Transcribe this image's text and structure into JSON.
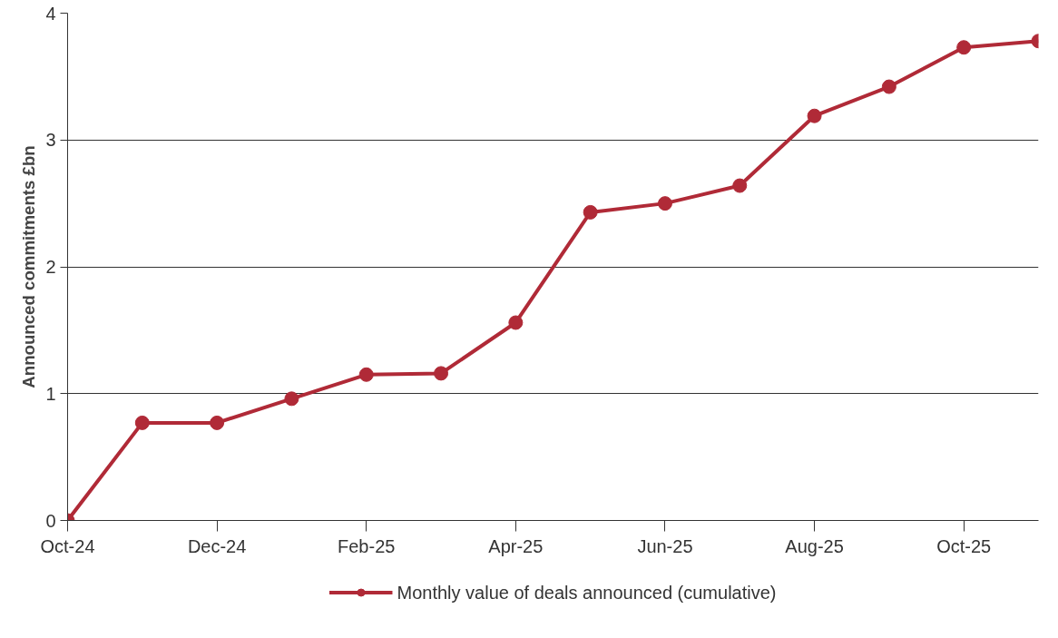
{
  "chart_data": {
    "type": "line",
    "ylabel": "Announced commitments £bn",
    "categories": [
      "Oct-24",
      null,
      "Dec-24",
      null,
      "Feb-25",
      null,
      "Apr-25",
      null,
      "Jun-25",
      null,
      "Aug-25",
      null,
      "Oct-25",
      null
    ],
    "series": [
      {
        "name": "Monthly value of deals announced (cumulative)",
        "color": "#b02a37",
        "values": [
          0,
          0.77,
          0.77,
          0.96,
          1.15,
          1.16,
          1.56,
          2.43,
          2.5,
          2.64,
          3.19,
          3.42,
          3.73,
          3.78
        ]
      }
    ],
    "ylim": [
      0,
      4
    ],
    "yticks": [
      0,
      1,
      2,
      3,
      4
    ],
    "grid": "y",
    "legend": "bottom",
    "marker": "circle",
    "line_style": "solid"
  }
}
